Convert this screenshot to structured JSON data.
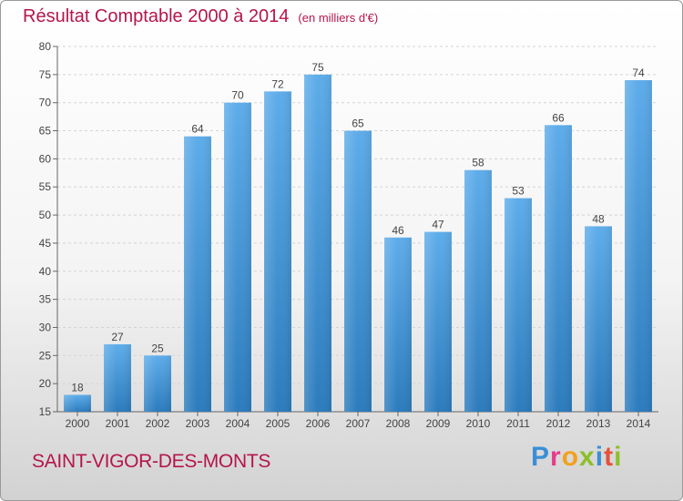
{
  "title": "Résultat Comptable 2000 à 2014",
  "subtitle": "(en milliers d'€)",
  "location": "SAINT-VIGOR-DES-MONTS",
  "brand": [
    "P",
    "r",
    "o",
    "x",
    "i",
    "t",
    "i"
  ],
  "colors": {
    "title": "#b5154b",
    "bar_light": "#5dacea",
    "bar_dark": "#2b7bbd"
  },
  "chart_data": {
    "type": "bar",
    "title": "Résultat Comptable 2000 à 2014",
    "xlabel": "",
    "ylabel": "",
    "categories": [
      "2000",
      "2001",
      "2002",
      "2003",
      "2004",
      "2005",
      "2006",
      "2007",
      "2008",
      "2009",
      "2010",
      "2011",
      "2012",
      "2013",
      "2014"
    ],
    "values": [
      18,
      27,
      25,
      64,
      70,
      72,
      75,
      65,
      46,
      47,
      58,
      53,
      66,
      48,
      74
    ],
    "ylim": [
      15,
      80
    ],
    "yticks": [
      15,
      20,
      25,
      30,
      35,
      40,
      45,
      50,
      55,
      60,
      65,
      70,
      75,
      80
    ],
    "grid": true
  }
}
